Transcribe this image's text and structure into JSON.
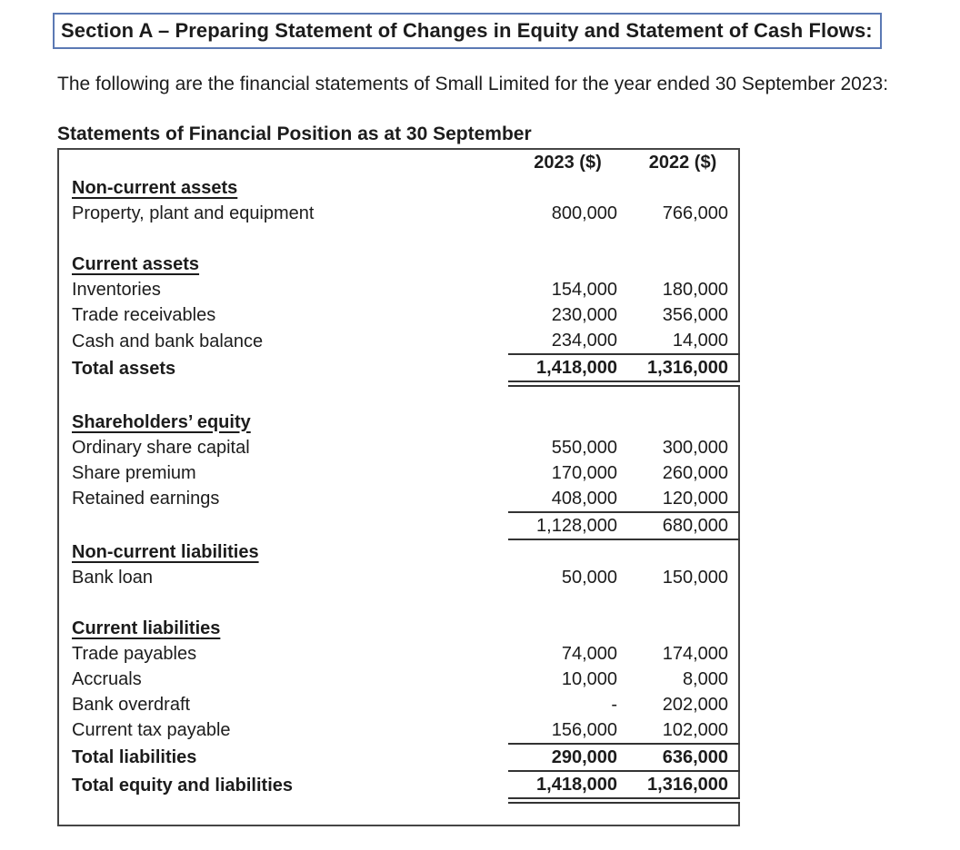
{
  "page": {
    "section_title": "Section A – Preparing Statement of Changes in Equity and Statement of Cash Flows:",
    "intro": "The following are the financial statements of Small Limited for the year ended 30 September 2023:",
    "table_title": "Statements of Financial Position as at 30 September"
  },
  "colors": {
    "section_box_border": "#5b79b4",
    "table_border": "#454545",
    "text": "#1c1c1c",
    "background": "#ffffff"
  },
  "table": {
    "columns": [
      "2023 ($)",
      "2022 ($)"
    ],
    "rows": [
      {
        "label": "Non-current assets",
        "style": "heading",
        "v2023": "",
        "v2022": ""
      },
      {
        "label": "Property, plant and equipment",
        "v2023": "800,000",
        "v2022": "766,000"
      },
      {
        "blank": true
      },
      {
        "label": "Current assets",
        "style": "heading",
        "v2023": "",
        "v2022": ""
      },
      {
        "label": "Inventories",
        "v2023": "154,000",
        "v2022": "180,000"
      },
      {
        "label": "Trade receivables",
        "v2023": "230,000",
        "v2022": "356,000"
      },
      {
        "label": "Cash and bank balance",
        "v2023": "234,000",
        "v2022": "14,000",
        "rule": "single"
      },
      {
        "label": "Total assets",
        "bold": true,
        "v2023": "1,418,000",
        "v2022": "1,316,000",
        "rule": "double"
      },
      {
        "blank": true
      },
      {
        "label": "Shareholders’ equity",
        "style": "heading",
        "v2023": "",
        "v2022": ""
      },
      {
        "label": "Ordinary share capital",
        "v2023": "550,000",
        "v2022": "300,000"
      },
      {
        "label": "Share premium",
        "v2023": "170,000",
        "v2022": "260,000"
      },
      {
        "label": "Retained earnings",
        "v2023": "408,000",
        "v2022": "120,000",
        "rule": "single"
      },
      {
        "label": "",
        "v2023": "1,128,000",
        "v2022": "680,000",
        "rule": "single"
      },
      {
        "label": "Non-current liabilities",
        "style": "heading",
        "v2023": "",
        "v2022": ""
      },
      {
        "label": "Bank loan",
        "v2023": "50,000",
        "v2022": "150,000"
      },
      {
        "blank": true
      },
      {
        "label": "Current liabilities",
        "style": "heading",
        "v2023": "",
        "v2022": ""
      },
      {
        "label": "Trade payables",
        "v2023": "74,000",
        "v2022": "174,000"
      },
      {
        "label": "Accruals",
        "v2023": "10,000",
        "v2022": "8,000"
      },
      {
        "label": "Bank overdraft",
        "v2023": "-",
        "v2022": "202,000"
      },
      {
        "label": "Current tax payable",
        "v2023": "156,000",
        "v2022": "102,000",
        "rule": "single"
      },
      {
        "label": "Total liabilities",
        "bold": true,
        "v2023": "290,000",
        "v2022": "636,000",
        "rule": "single"
      },
      {
        "label": "Total equity and liabilities",
        "bold": true,
        "v2023": "1,418,000",
        "v2022": "1,316,000",
        "rule": "double"
      },
      {
        "blank": true
      }
    ]
  }
}
